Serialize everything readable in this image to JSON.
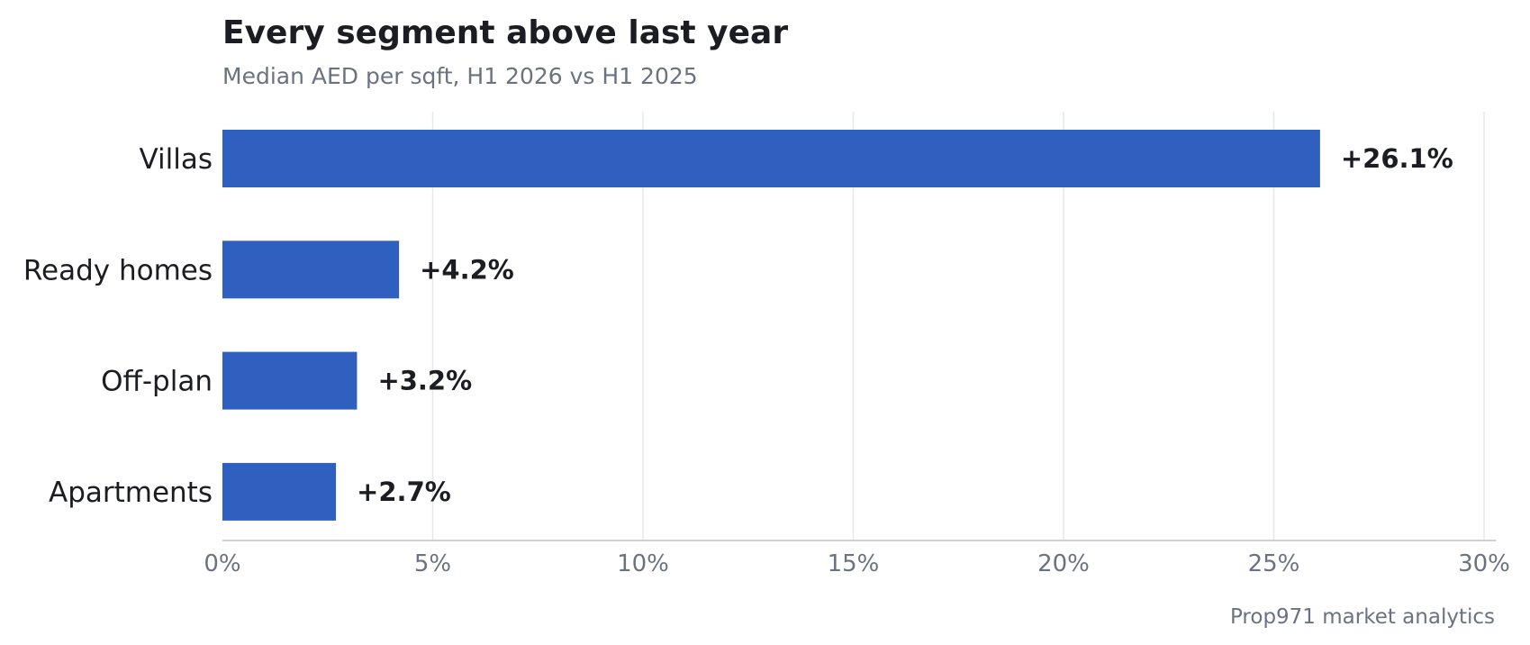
{
  "chart_data": {
    "type": "bar",
    "orientation": "horizontal",
    "title": "Every segment above last year",
    "subtitle": "Median AED per sqft, H1 2026 vs H1 2025",
    "categories": [
      "Villas",
      "Ready homes",
      "Off-plan",
      "Apartments"
    ],
    "values": [
      26.1,
      4.2,
      3.2,
      2.7
    ],
    "value_labels": [
      "+26.1%",
      "+4.2%",
      "+3.2%",
      "+2.7%"
    ],
    "xlim": [
      0,
      30
    ],
    "xticks": [
      0,
      5,
      10,
      15,
      20,
      25,
      30
    ],
    "xtick_labels": [
      "0%",
      "5%",
      "10%",
      "15%",
      "20%",
      "25%",
      "30%"
    ],
    "xlabel": "",
    "ylabel": "",
    "grid": "vertical",
    "legend": "none",
    "bar_color": "#3060bf",
    "source": "Prop971 market analytics"
  }
}
